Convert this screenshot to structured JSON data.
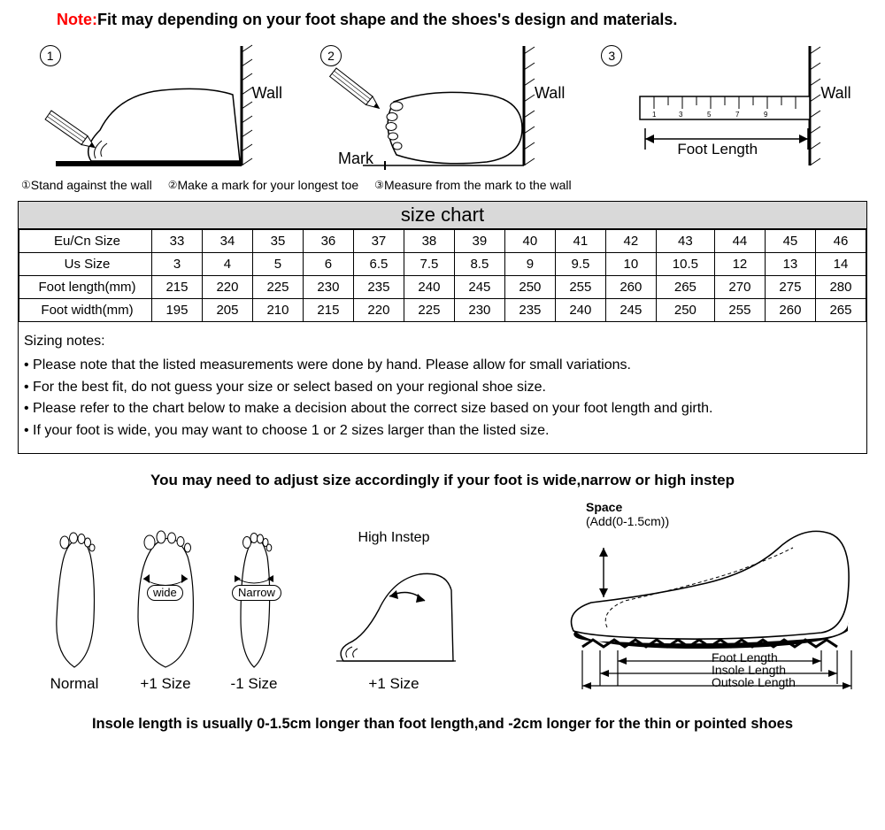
{
  "note": {
    "label": "Note:",
    "text": "Fit may depending on your foot shape and the shoes's design and materials."
  },
  "steps": {
    "s1": {
      "num": "1",
      "wall": "Wall"
    },
    "s2": {
      "num": "2",
      "wall": "Wall",
      "mark": "Mark"
    },
    "s3": {
      "num": "3",
      "wall": "Wall",
      "footlen": "Foot Length"
    }
  },
  "captions": {
    "c1": {
      "num": "①",
      "text": "Stand against the wall"
    },
    "c2": {
      "num": "②",
      "text": "Make a mark for your longest toe"
    },
    "c3": {
      "num": "③",
      "text": "Measure from the mark to the wall"
    }
  },
  "size_chart": {
    "title": "size chart",
    "rows": [
      {
        "label": "Eu/Cn Size",
        "cells": [
          "33",
          "34",
          "35",
          "36",
          "37",
          "38",
          "39",
          "40",
          "41",
          "42",
          "43",
          "44",
          "45",
          "46"
        ]
      },
      {
        "label": "Us Size",
        "cells": [
          "3",
          "4",
          "5",
          "6",
          "6.5",
          "7.5",
          "8.5",
          "9",
          "9.5",
          "10",
          "10.5",
          "12",
          "13",
          "14"
        ]
      },
      {
        "label": "Foot length(mm)",
        "cells": [
          "215",
          "220",
          "225",
          "230",
          "235",
          "240",
          "245",
          "250",
          "255",
          "260",
          "265",
          "270",
          "275",
          "280"
        ]
      },
      {
        "label": "Foot width(mm)",
        "cells": [
          "195",
          "205",
          "210",
          "215",
          "220",
          "225",
          "230",
          "235",
          "240",
          "245",
          "250",
          "255",
          "260",
          "265"
        ]
      }
    ]
  },
  "notes": {
    "title": "Sizing notes:",
    "items": [
      "Please note that the listed measurements were done by hand. Please allow for small variations.",
      "For the best fit, do not guess your size or select based on your regional shoe size.",
      "Please refer to the chart below to make a decision about the correct size based on your foot length and girth.",
      "If your foot is wide, you may want to choose 1 or 2 sizes larger than the listed size."
    ]
  },
  "adjust_heading": "You may need to adjust size accordingly if your foot is wide,narrow or high instep",
  "feet": {
    "normal": {
      "label": "Normal"
    },
    "wide": {
      "label": "+1 Size",
      "badge": "wide"
    },
    "narrow": {
      "label": "-1 Size",
      "badge": "Narrow"
    },
    "instep": {
      "title": "High Instep",
      "label": "+1 Size"
    }
  },
  "shoe": {
    "space_label": "Space",
    "space_sub": "(Add(0-1.5cm))",
    "foot_len": "Foot Length",
    "insole_len": "Insole Length",
    "outsole_len": "Outsole Length"
  },
  "insole_note": "Insole length is usually 0-1.5cm longer than foot length,and -2cm longer for the thin or pointed shoes",
  "colors": {
    "accent": "#ff0000",
    "header_bg": "#d9d9d9",
    "line": "#000000"
  }
}
